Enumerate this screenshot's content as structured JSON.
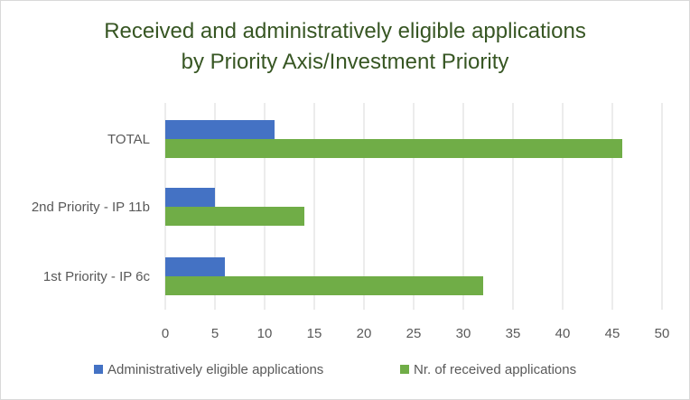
{
  "chart_data": {
    "type": "bar",
    "orientation": "horizontal",
    "title_lines": [
      "Received and administratively eligible applications",
      "by Priority Axis/Investment Priority"
    ],
    "categories": [
      "TOTAL",
      "2nd Priority - IP 11b",
      "1st Priority - IP 6c"
    ],
    "series": [
      {
        "name": "Administratively eligible  applications",
        "color": "#4472c4",
        "values": [
          11,
          5,
          6
        ]
      },
      {
        "name": "Nr. of received applications",
        "color": "#70ad47",
        "values": [
          46,
          14,
          32
        ]
      }
    ],
    "xlim": [
      0,
      50
    ],
    "xticks": [
      0,
      5,
      10,
      15,
      20,
      25,
      30,
      35,
      40,
      45,
      50
    ],
    "grid": true,
    "legend_position": "bottom"
  }
}
